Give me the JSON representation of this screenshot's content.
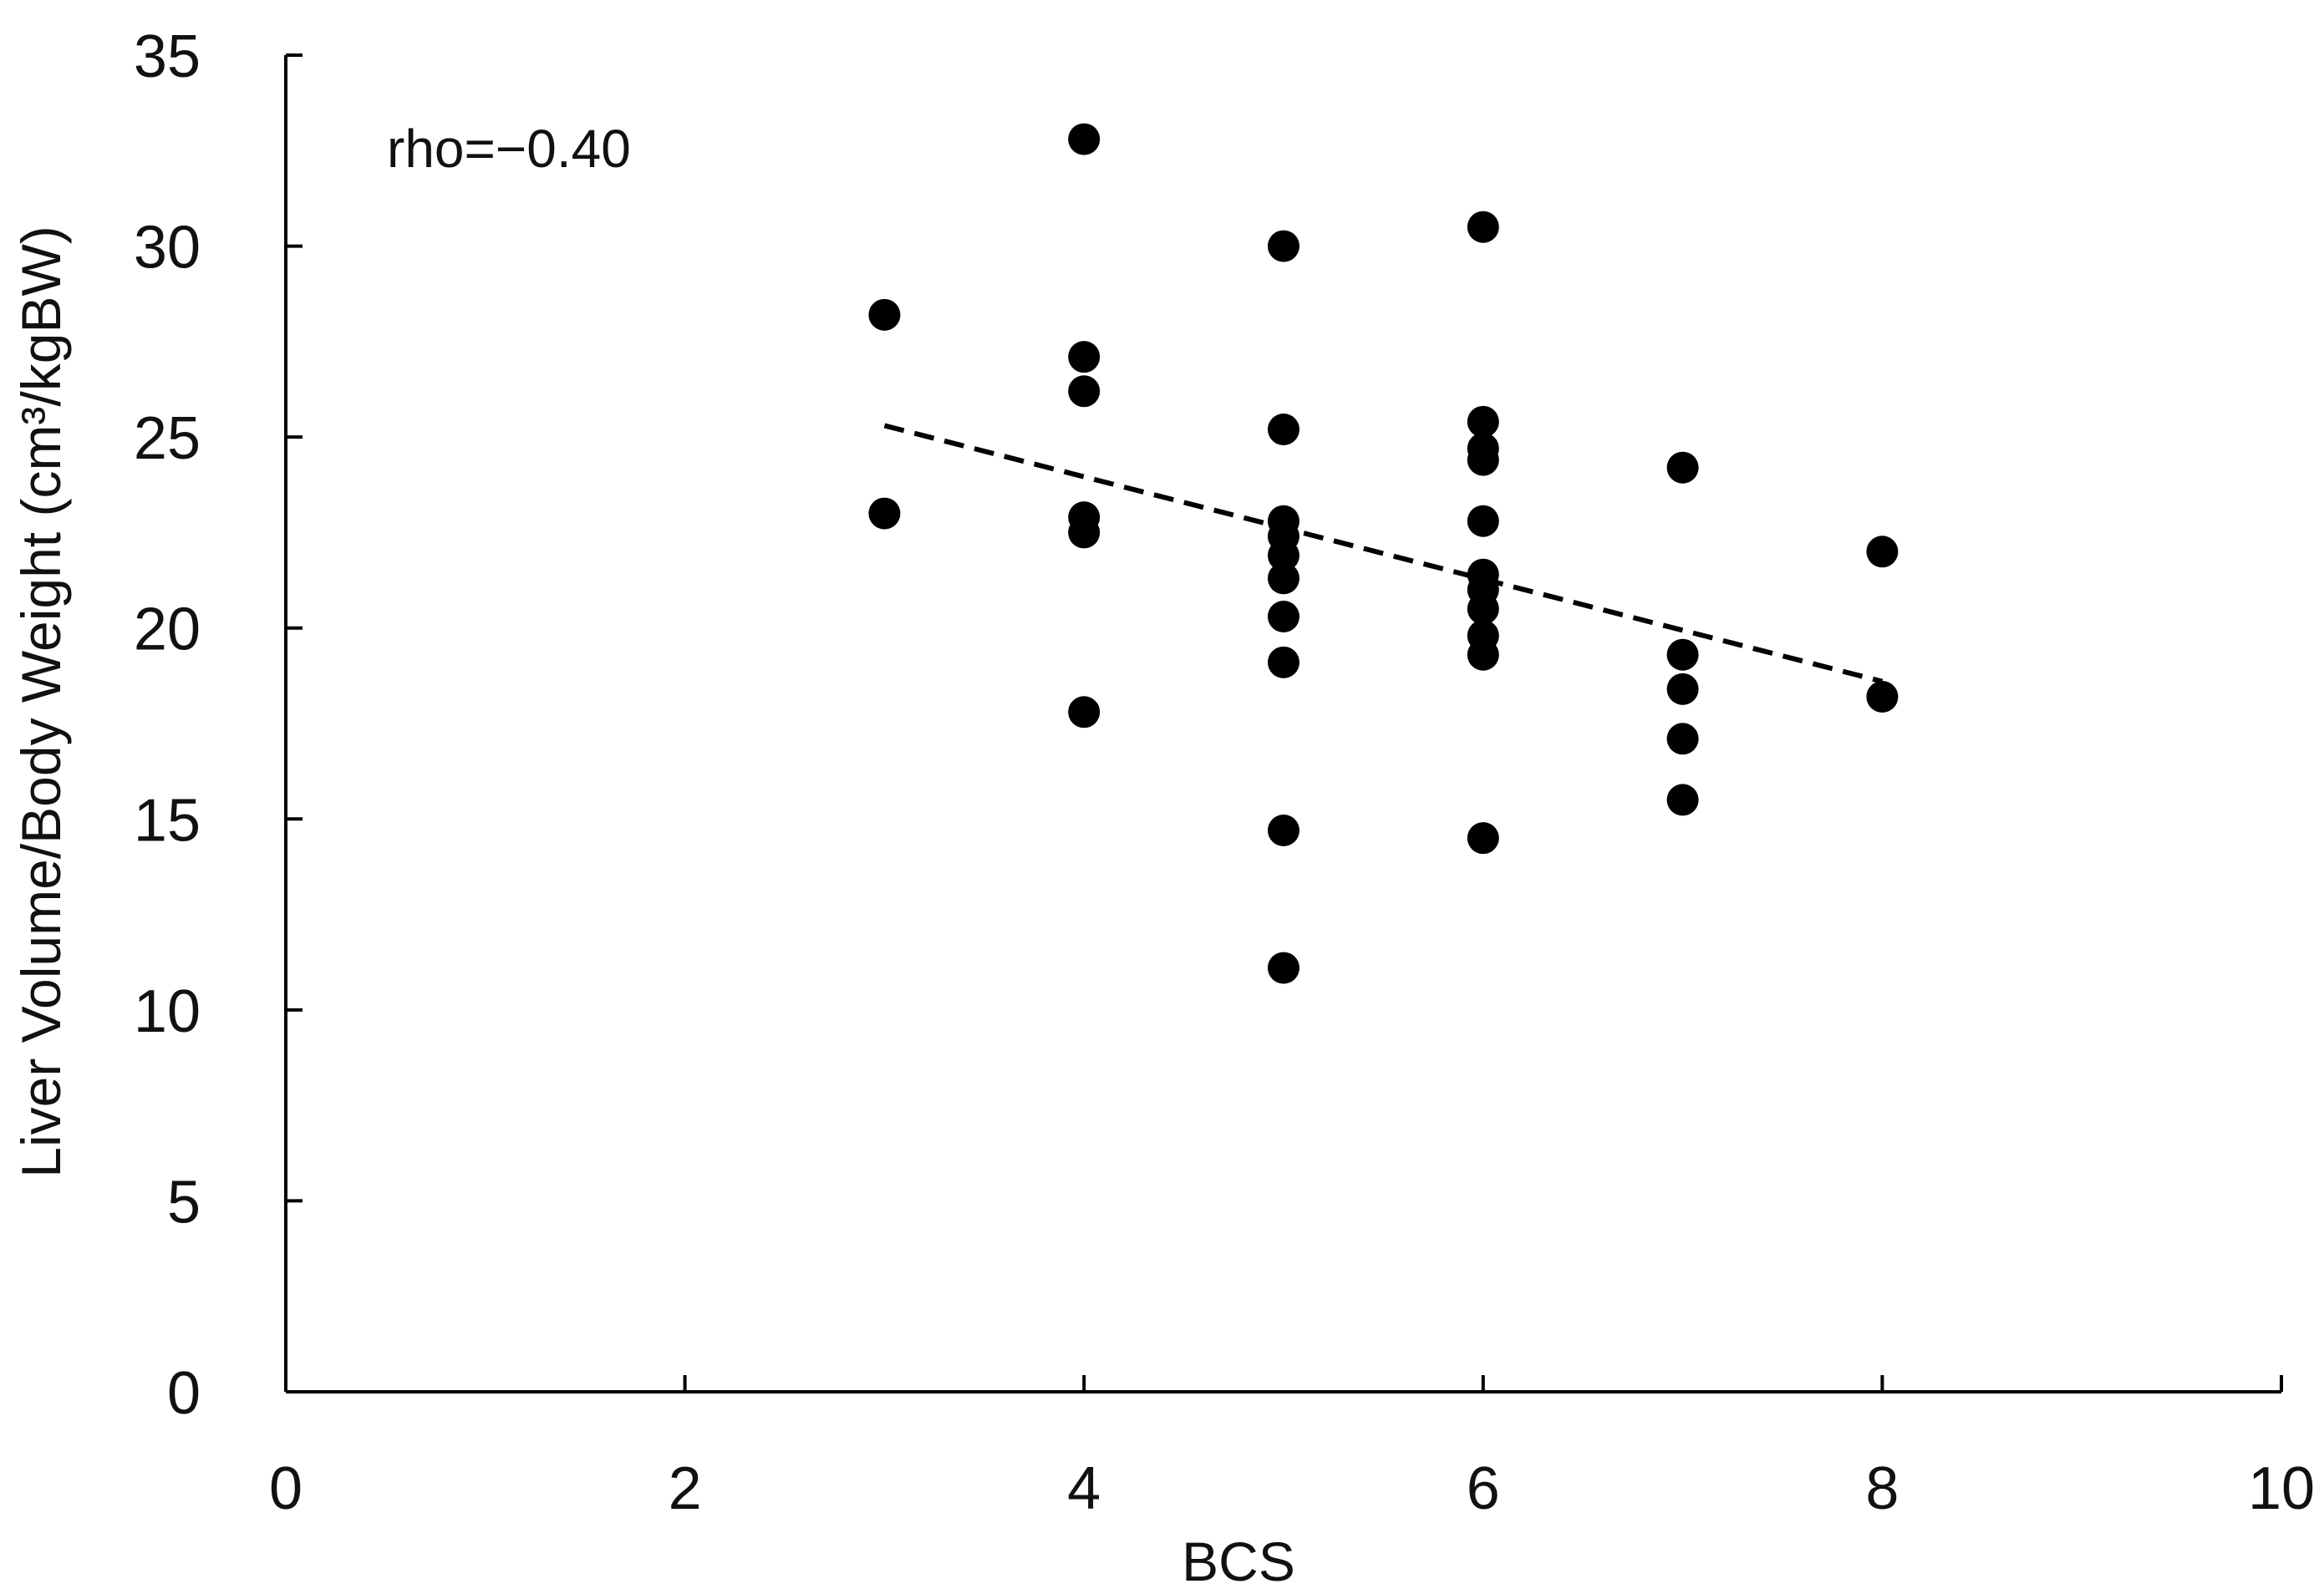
{
  "chart_data": {
    "type": "scatter",
    "title": "",
    "xlabel": "BCS",
    "ylabel": "Liver Volume/Body Weight (cm³/kgBW)",
    "xlim": [
      0,
      10
    ],
    "ylim": [
      0,
      35
    ],
    "xticks": [
      0,
      2,
      4,
      6,
      8,
      10
    ],
    "yticks": [
      0,
      5,
      10,
      15,
      20,
      25,
      30,
      35
    ],
    "grid": false,
    "annotation": "rho=−0.40",
    "colors": {
      "marker": "#000000",
      "axis": "#000000",
      "trendline": "#000000"
    },
    "series": [
      {
        "points": [
          [
            3,
            28.2
          ],
          [
            3,
            23.0
          ],
          [
            4,
            32.8
          ],
          [
            4,
            27.1
          ],
          [
            4,
            26.2
          ],
          [
            4,
            22.9
          ],
          [
            4,
            22.5
          ],
          [
            4,
            17.8
          ],
          [
            5,
            30.0
          ],
          [
            5,
            25.2
          ],
          [
            5,
            22.8
          ],
          [
            5,
            22.4
          ],
          [
            5,
            21.9
          ],
          [
            5,
            21.3
          ],
          [
            5,
            20.3
          ],
          [
            5,
            19.1
          ],
          [
            5,
            14.7
          ],
          [
            5,
            11.1
          ],
          [
            6,
            30.5
          ],
          [
            6,
            25.4
          ],
          [
            6,
            24.7
          ],
          [
            6,
            24.4
          ],
          [
            6,
            22.8
          ],
          [
            6,
            21.4
          ],
          [
            6,
            21.0
          ],
          [
            6,
            20.5
          ],
          [
            6,
            19.8
          ],
          [
            6,
            19.3
          ],
          [
            6,
            14.5
          ],
          [
            7,
            24.2
          ],
          [
            7,
            19.3
          ],
          [
            7,
            18.4
          ],
          [
            7,
            17.1
          ],
          [
            7,
            15.5
          ],
          [
            8,
            22.0
          ],
          [
            8,
            18.2
          ]
        ]
      }
    ],
    "trendline": {
      "style": "dashed",
      "x": [
        3,
        8
      ],
      "y": [
        25.3,
        18.6
      ]
    }
  }
}
